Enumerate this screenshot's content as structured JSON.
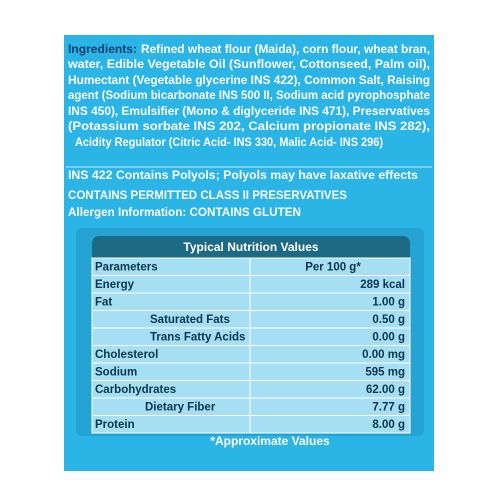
{
  "ingredients": {
    "label": "Ingredients:",
    "lines": [
      "Refined wheat flour (Maida), corn flour, wheat bran,",
      "water, Edible Vegetable Oil (Sunflower, Cottonseed, Palm oil),",
      "Humectant (Vegetable glycerine INS 422), Common Salt, Raising",
      "agent (Sodium bicarbonate INS 500 II, Sodium acid pyrophosphate",
      "INS 450), Emulsifier (Mono & diglyceride INS 471), Preservatives",
      "(Potassium sorbate INS 202, Calcium propionate INS 282),",
      "Acidity Regulator (Citric Acid- INS 330, Malic Acid- INS 296)"
    ]
  },
  "statements": [
    "INS 422 Contains Polyols; Polyols may have laxative effects",
    "CONTAINS PERMITTED CLASS II  PRESERVATIVES",
    "Allergen Information: CONTAINS GLUTEN"
  ],
  "table": {
    "title": "Typical Nutrition Values",
    "rows": [
      [
        "Parameters",
        "Per 100 g*"
      ],
      [
        "Energy",
        "289 kcal"
      ],
      [
        "Fat",
        "1.00 g"
      ],
      [
        "Saturated Fats",
        "0.50 g"
      ],
      [
        "Trans Fatty Acids",
        "0.00 g"
      ],
      [
        "Cholesterol",
        "0.00 mg"
      ],
      [
        "Sodium",
        "595 mg"
      ],
      [
        "Carbohydrates",
        "62.00 g"
      ],
      [
        "Dietary Fiber",
        "7.77 g"
      ],
      [
        "Protein",
        "8.00 g"
      ]
    ],
    "footnote": "*Approximate Values"
  }
}
